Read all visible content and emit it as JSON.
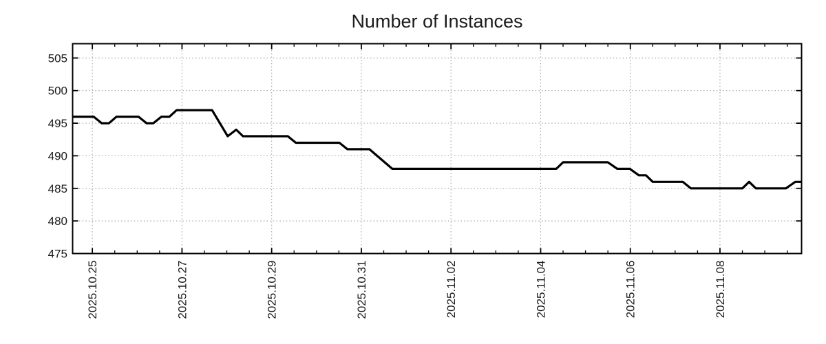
{
  "title": "Number of Instances",
  "chart_data": {
    "type": "line",
    "title": "Number of Instances",
    "xlabel": "",
    "ylabel": "",
    "legend": "none",
    "grid": "dotted",
    "x_axis": {
      "kind": "date",
      "tick_labels": [
        "2025.10.25",
        "2025.10.27",
        "2025.10.29",
        "2025.10.31",
        "2025.11.02",
        "2025.11.04",
        "2025.11.06",
        "2025.11.08"
      ],
      "tick_positions_days": [
        0,
        2,
        4,
        6,
        8,
        10,
        12,
        14
      ],
      "minor_tick_step_days": 0.5,
      "range_days": [
        -0.44,
        15.82
      ]
    },
    "y_axis": {
      "tick_labels": [
        "475",
        "480",
        "485",
        "490",
        "495",
        "500",
        "505"
      ],
      "tick_values": [
        475,
        480,
        485,
        490,
        495,
        500,
        505
      ],
      "range": [
        475,
        507.2
      ]
    },
    "series": [
      {
        "name": "instances",
        "color": "#000000",
        "points_day_value": [
          [
            -0.44,
            496
          ],
          [
            0.03,
            496
          ],
          [
            0.21,
            495
          ],
          [
            0.37,
            495
          ],
          [
            0.54,
            496
          ],
          [
            1.03,
            496
          ],
          [
            1.21,
            495
          ],
          [
            1.36,
            495
          ],
          [
            1.54,
            496
          ],
          [
            1.72,
            496
          ],
          [
            1.88,
            497
          ],
          [
            2.67,
            497
          ],
          [
            3.02,
            493
          ],
          [
            3.21,
            494
          ],
          [
            3.36,
            493
          ],
          [
            4.36,
            493
          ],
          [
            4.54,
            492
          ],
          [
            5.51,
            492
          ],
          [
            5.69,
            491
          ],
          [
            6.18,
            491
          ],
          [
            6.69,
            488
          ],
          [
            10.35,
            488
          ],
          [
            10.5,
            489
          ],
          [
            11.5,
            489
          ],
          [
            11.71,
            488
          ],
          [
            11.99,
            488
          ],
          [
            12.19,
            487
          ],
          [
            12.35,
            487
          ],
          [
            12.5,
            486
          ],
          [
            13.17,
            486
          ],
          [
            13.35,
            485
          ],
          [
            14.5,
            485
          ],
          [
            14.65,
            486
          ],
          [
            14.8,
            485
          ],
          [
            15.47,
            485
          ],
          [
            15.68,
            486
          ],
          [
            15.82,
            486
          ]
        ]
      }
    ],
    "colors": {
      "background": "#ffffff",
      "grid": "#a6a6a6",
      "axis": "#000000",
      "line": "#000000",
      "text": "#1c1c1c"
    }
  }
}
